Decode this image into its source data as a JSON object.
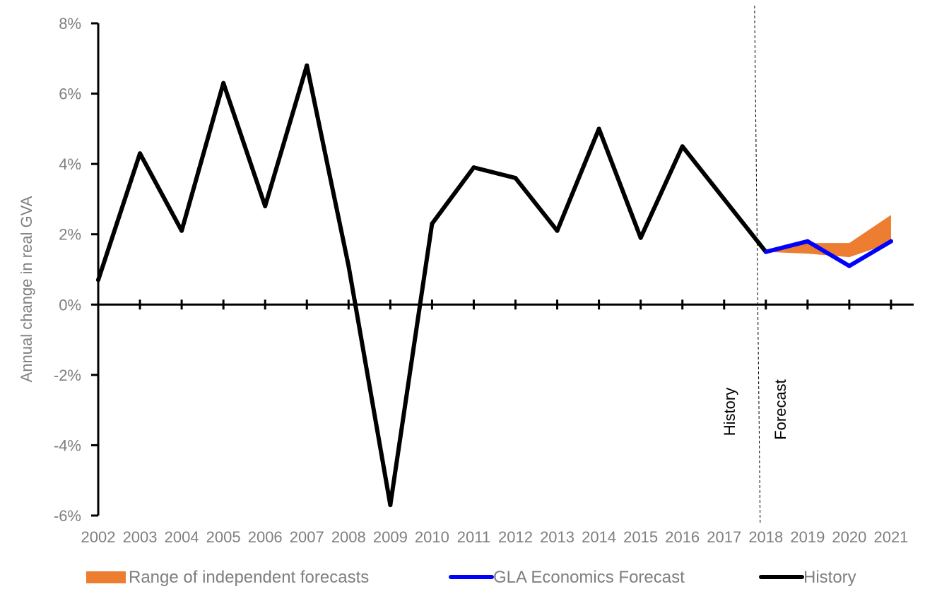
{
  "chart_data": {
    "type": "line",
    "title": "",
    "xlabel": "",
    "ylabel": "Annual change in real GVA",
    "ylim": [
      -6,
      8
    ],
    "y_ticks": [
      "8%",
      "6%",
      "4%",
      "2%",
      "0%",
      "-2%",
      "-4%",
      "-6%"
    ],
    "y_tick_values": [
      8,
      6,
      4,
      2,
      0,
      -2,
      -4,
      -6
    ],
    "categories": [
      "2002",
      "2003",
      "2004",
      "2005",
      "2006",
      "2007",
      "2008",
      "2009",
      "2010",
      "2011",
      "2012",
      "2013",
      "2014",
      "2015",
      "2016",
      "2017",
      "2018",
      "2019",
      "2020",
      "2021"
    ],
    "series": [
      {
        "name": "History",
        "color": "#000000",
        "values": [
          0.7,
          4.3,
          2.1,
          6.3,
          2.8,
          6.8,
          1.1,
          -5.7,
          2.3,
          3.9,
          3.6,
          2.1,
          5.0,
          1.9,
          4.5,
          3.0,
          1.5,
          null,
          null,
          null
        ]
      },
      {
        "name": "GLA Economics Forecast",
        "color": "#0000ff",
        "values": [
          null,
          null,
          null,
          null,
          null,
          null,
          null,
          null,
          null,
          null,
          null,
          null,
          null,
          null,
          null,
          null,
          1.5,
          1.8,
          1.1,
          1.8
        ]
      }
    ],
    "range": {
      "name": "Range of independent forecasts",
      "color": "#ed7d31",
      "low": [
        null,
        null,
        null,
        null,
        null,
        null,
        null,
        null,
        null,
        null,
        null,
        null,
        null,
        null,
        null,
        null,
        1.5,
        1.45,
        1.35,
        1.75
      ],
      "high": [
        null,
        null,
        null,
        null,
        null,
        null,
        null,
        null,
        null,
        null,
        null,
        null,
        null,
        null,
        null,
        null,
        1.5,
        1.75,
        1.75,
        2.55
      ]
    },
    "divider_after": "2018",
    "annotations": {
      "history": "History",
      "forecast": "Forecast"
    },
    "legend": {
      "position": "bottom",
      "items": [
        {
          "label": "Range of independent forecasts",
          "color": "#ed7d31",
          "kind": "area"
        },
        {
          "label": "GLA Economics Forecast",
          "color": "#0000ff",
          "kind": "line"
        },
        {
          "label": "History",
          "color": "#000000",
          "kind": "line"
        }
      ]
    },
    "grid": false
  }
}
